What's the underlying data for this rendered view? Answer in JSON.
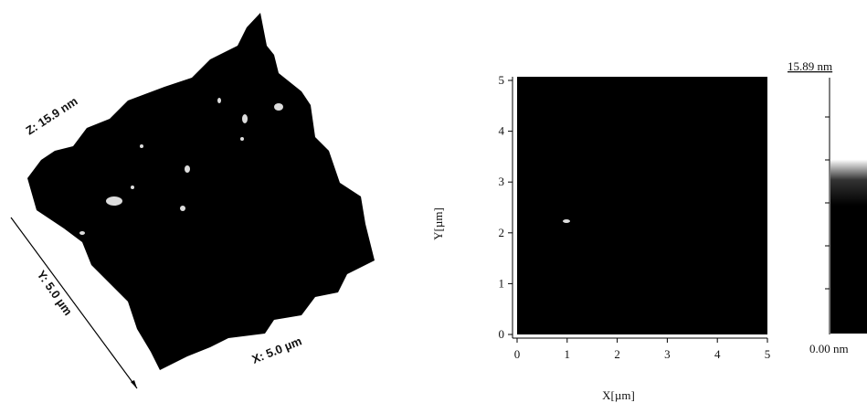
{
  "surface_view": {
    "z_label": "Z: 15.9 nm",
    "y_label": "Y: 5.0 µm",
    "x_label": "X: 5.0 µm"
  },
  "height_map": {
    "x_label": "X[µm]",
    "y_label": "Y[µm]",
    "x_ticks": [
      "0",
      "1",
      "2",
      "3",
      "4",
      "5"
    ],
    "y_ticks": [
      "0",
      "1",
      "2",
      "3",
      "4",
      "5"
    ]
  },
  "color_scale": {
    "max_label": "15.89 nm",
    "min_label": "0.00 nm"
  }
}
